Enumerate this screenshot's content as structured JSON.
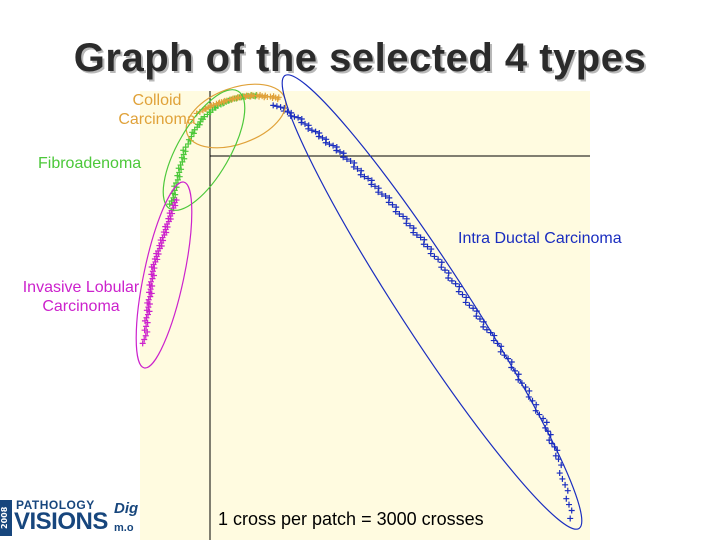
{
  "title": "Graph of the selected 4 types",
  "note": "1 cross per patch = 3000 crosses",
  "logo": {
    "year": "2008",
    "line1": "PATHOLOGY",
    "line2": "VISIONS",
    "tag": "Dig",
    "url": "m.o"
  },
  "colors": {
    "background": "#fffbe0",
    "colloid": "#e0a23a",
    "fibroadenoma": "#4cc83a",
    "idc": "#1a2dbf",
    "ilc": "#cc22cc",
    "axis": "#000000"
  },
  "chart_data": {
    "type": "scatter",
    "title": "Graph of the selected 4 types",
    "xlabel": "",
    "ylabel": "",
    "xlim": [
      0,
      1
    ],
    "ylim": [
      0,
      1
    ],
    "grid": false,
    "annotation": "1 cross per patch = 3000 crosses",
    "series": [
      {
        "name": "Colloid\nCarcinoma",
        "color": "#e0a23a",
        "x": [
          0.13,
          0.16,
          0.19,
          0.22,
          0.25,
          0.28,
          0.31
        ],
        "y": [
          0.952,
          0.968,
          0.978,
          0.986,
          0.99,
          0.988,
          0.984
        ]
      },
      {
        "name": "Fibroadenoma",
        "color": "#4cc83a",
        "x": [
          0.07,
          0.08,
          0.09,
          0.1,
          0.12,
          0.14,
          0.17,
          0.2,
          0.23,
          0.26
        ],
        "y": [
          0.75,
          0.79,
          0.83,
          0.87,
          0.91,
          0.94,
          0.965,
          0.98,
          0.988,
          0.99
        ]
      },
      {
        "name": "Intra Ductal Carcinoma",
        "color": "#1a2dbf",
        "x": [
          0.3,
          0.35,
          0.4,
          0.45,
          0.5,
          0.55,
          0.6,
          0.65,
          0.7,
          0.75,
          0.8,
          0.85,
          0.9,
          0.93,
          0.96
        ],
        "y": [
          0.97,
          0.94,
          0.9,
          0.86,
          0.81,
          0.76,
          0.7,
          0.64,
          0.57,
          0.5,
          0.43,
          0.35,
          0.26,
          0.18,
          0.05
        ]
      },
      {
        "name": "Invasive Lobular\nCarcinoma",
        "color": "#cc22cc",
        "x": [
          0.01,
          0.015,
          0.02,
          0.025,
          0.03,
          0.04,
          0.05,
          0.06,
          0.07,
          0.08
        ],
        "y": [
          0.44,
          0.49,
          0.53,
          0.57,
          0.61,
          0.64,
          0.67,
          0.7,
          0.73,
          0.76
        ]
      }
    ]
  }
}
